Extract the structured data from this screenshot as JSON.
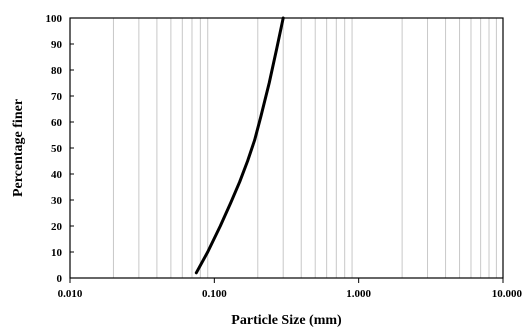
{
  "chart_data": {
    "type": "line",
    "title": "",
    "xlabel": "Particle Size (mm)",
    "ylabel": "Percentage finer",
    "xscale": "log",
    "xlim": [
      0.01,
      10
    ],
    "ylim": [
      0,
      100
    ],
    "grid": {
      "x": "log-minor",
      "y": false
    },
    "legend": "none",
    "x_ticks": [
      0.01,
      0.1,
      1,
      10
    ],
    "x_tick_labels": [
      "0.010",
      "0.100",
      "1.000",
      "10.000"
    ],
    "y_ticks": [
      0,
      10,
      20,
      30,
      40,
      50,
      60,
      70,
      80,
      90,
      100
    ],
    "y_tick_labels": [
      "0",
      "10",
      "20",
      "30",
      "40",
      "50",
      "60",
      "70",
      "80",
      "90",
      "100"
    ],
    "series": [
      {
        "color": "#000000",
        "x": [
          0.075,
          0.09,
          0.11,
          0.13,
          0.15,
          0.17,
          0.19,
          0.21,
          0.24,
          0.27,
          0.3
        ],
        "y": [
          2,
          10,
          20,
          29,
          37,
          45,
          53,
          62,
          75,
          88,
          100
        ]
      }
    ]
  }
}
